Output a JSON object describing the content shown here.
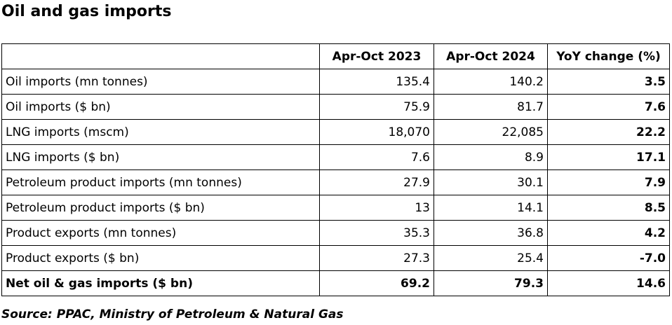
{
  "title": "Oil and gas imports",
  "source": "Source: PPAC, Ministry of Petroleum & Natural Gas",
  "chart_data": {
    "type": "table",
    "title": "Oil and gas imports",
    "columns": [
      "",
      "Apr-Oct 2023",
      "Apr-Oct 2024",
      "YoY change (%)"
    ],
    "rows": [
      {
        "label": "Oil imports (mn tonnes)",
        "values": [
          "135.4",
          "140.2",
          "3.5"
        ]
      },
      {
        "label": "Oil imports ($ bn)",
        "values": [
          "75.9",
          "81.7",
          "7.6"
        ]
      },
      {
        "label": "LNG imports (mscm)",
        "values": [
          "18,070",
          "22,085",
          "22.2"
        ]
      },
      {
        "label": "LNG imports ($ bn)",
        "values": [
          "7.6",
          "8.9",
          "17.1"
        ]
      },
      {
        "label": "Petroleum product imports (mn tonnes)",
        "values": [
          "27.9",
          "30.1",
          "7.9"
        ]
      },
      {
        "label": "Petroleum product imports ($ bn)",
        "values": [
          "13",
          "14.1",
          "8.5"
        ]
      },
      {
        "label": "Product exports (mn tonnes)",
        "values": [
          "35.3",
          "36.8",
          "4.2"
        ]
      },
      {
        "label": "Product exports ($ bn)",
        "values": [
          "27.3",
          "25.4",
          "-7.0"
        ]
      },
      {
        "label": "Net oil & gas imports ($ bn)",
        "values": [
          "69.2",
          "79.3",
          "14.6"
        ],
        "emphasis": true
      }
    ]
  }
}
